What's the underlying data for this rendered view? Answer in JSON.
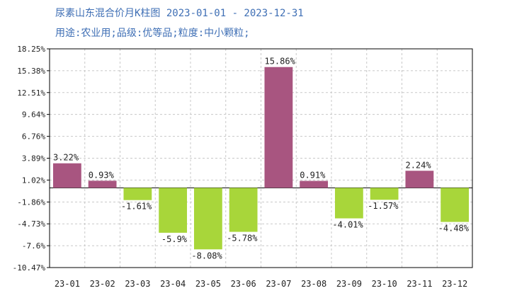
{
  "header": {
    "title": "尿素山东混合价月K柱图  2023-01-01 - 2023-12-31",
    "subtitle": "用途:农业用;品级:优等品;粒度:中小颗粒;"
  },
  "colors": {
    "positive": "#a85580",
    "negative": "#a8d63a",
    "axis": "#000000",
    "grid": "#c8c8c8",
    "title": "#3f6fb5"
  },
  "chart_data": {
    "type": "bar",
    "categories": [
      "23-01",
      "23-02",
      "23-03",
      "23-04",
      "23-05",
      "23-06",
      "23-07",
      "23-08",
      "23-09",
      "23-10",
      "23-11",
      "23-12"
    ],
    "values": [
      3.22,
      0.93,
      -1.61,
      -5.9,
      -8.08,
      -5.78,
      15.86,
      0.91,
      -4.01,
      -1.57,
      2.24,
      -4.48
    ],
    "value_labels": [
      "3.22%",
      "0.93%",
      "-1.61%",
      "-5.9%",
      "-8.08%",
      "-5.78%",
      "15.86%",
      "0.91%",
      "-4.01%",
      "-1.57%",
      "2.24%",
      "-4.48%"
    ],
    "yticks": [
      18.25,
      15.38,
      12.51,
      9.64,
      6.76,
      3.89,
      1.02,
      -1.86,
      -4.73,
      -7.6,
      -10.47
    ],
    "ytick_labels": [
      "18.25%",
      "15.38%",
      "12.51%",
      "9.64%",
      "6.76%",
      "3.89%",
      "1.02%",
      "-1.86%",
      "-4.73%",
      "-7.6%",
      "-10.47%"
    ],
    "ylim": [
      -10.47,
      18.25
    ],
    "grid": true,
    "legend": "none"
  }
}
